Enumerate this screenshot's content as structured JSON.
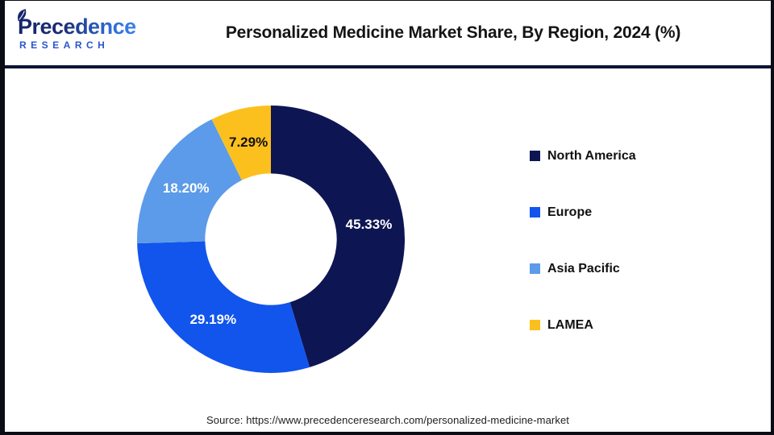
{
  "brand": {
    "name": "Precedence",
    "subtitle": "RESEARCH",
    "navy": "#16246b",
    "blue": "#2b55cb"
  },
  "chart_data": {
    "type": "pie",
    "donut": true,
    "title": "Personalized Medicine Market Share, By Region, 2024 (%)",
    "categories": [
      "North America",
      "Europe",
      "Asia Pacific",
      "LAMEA"
    ],
    "values": [
      45.33,
      29.19,
      18.2,
      7.29
    ],
    "labels": [
      "45.33%",
      "29.19%",
      "18.20%",
      "7.29%"
    ],
    "colors": [
      "#0e1553",
      "#1155ec",
      "#5b9be9",
      "#fcc01e"
    ],
    "label_colors": [
      "#ffffff",
      "#ffffff",
      "#ffffff",
      "#111111"
    ],
    "start_angle_deg": 0,
    "direction": "clockwise",
    "inner_radius_ratio": 0.492,
    "label_radius_ratio": 0.74,
    "legend_position": "right",
    "background": "#ffffff"
  },
  "footer": {
    "source": "Source: https://www.precedenceresearch.com/personalized-medicine-market"
  }
}
